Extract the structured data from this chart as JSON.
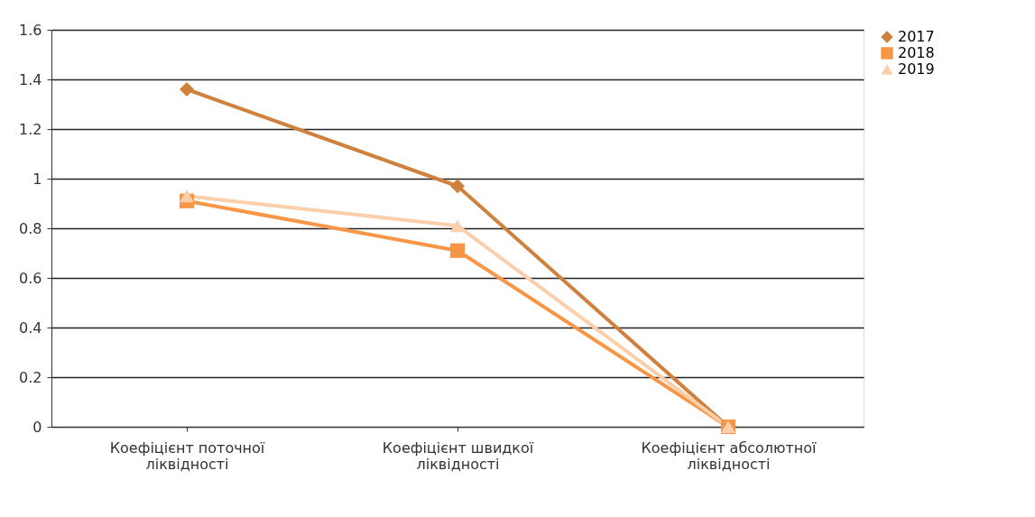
{
  "chart_data": {
    "type": "line",
    "categories": [
      "Коефіцієнт поточної ліквідності",
      "Коефіцієнт швидкої ліквідності",
      "Коефіцієнт абсолютної ліквідності"
    ],
    "series": [
      {
        "name": "2017",
        "color": "#d0813e",
        "marker": "diamond",
        "values": [
          1.36,
          0.97,
          0
        ]
      },
      {
        "name": "2018",
        "color": "#f79646",
        "marker": "square",
        "values": [
          0.91,
          0.71,
          0
        ]
      },
      {
        "name": "2019",
        "color": "#fbcfaa",
        "marker": "triangle",
        "values": [
          0.93,
          0.81,
          0
        ]
      }
    ],
    "ylim": [
      0,
      1.6
    ],
    "yticks": [
      0,
      0.2,
      0.4,
      0.6,
      0.8,
      1,
      1.2,
      1.4,
      1.6
    ],
    "grid": "y",
    "legend": "right"
  }
}
